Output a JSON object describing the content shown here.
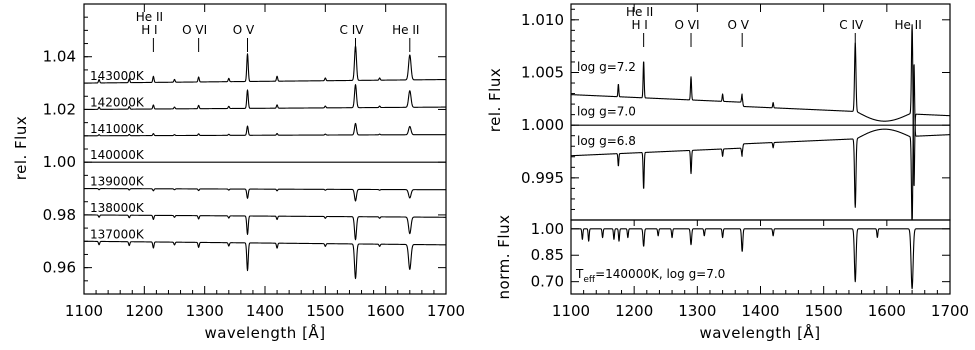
{
  "chart_data": [
    {
      "type": "line",
      "panel": "left",
      "xlabel": "wavelength [Å]",
      "ylabel": "rel. Flux",
      "xlim": [
        1100,
        1700
      ],
      "ylim": [
        0.95,
        1.06
      ],
      "x_ticks": [
        1100,
        1200,
        1300,
        1400,
        1500,
        1600,
        1700
      ],
      "y_ticks": [
        0.96,
        0.98,
        1.0,
        1.02,
        1.04
      ],
      "y_tick_labels": [
        "0.96",
        "0.98",
        "1.00",
        "1.02",
        "1.04"
      ],
      "line_markers": [
        {
          "label_top": "He II",
          "label_bottom": "H I",
          "x": 1215
        },
        {
          "label_top": "",
          "label_bottom": "O VI",
          "x": 1290
        },
        {
          "label_top": "",
          "label_bottom": "O V",
          "x": 1371
        },
        {
          "label_top": "",
          "label_bottom": "C IV",
          "x": 1550
        },
        {
          "label_top": "",
          "label_bottom": "He II",
          "x": 1640
        }
      ],
      "series": [
        {
          "name": "143000K",
          "offset": 1.03,
          "line_strength": 1.5
        },
        {
          "name": "142000K",
          "offset": 1.02,
          "line_strength": 1.0
        },
        {
          "name": "141000K",
          "offset": 1.01,
          "line_strength": 0.5
        },
        {
          "name": "140000K",
          "offset": 1.0,
          "line_strength": 0.0
        },
        {
          "name": "139000K",
          "offset": 0.99,
          "line_strength": -0.5
        },
        {
          "name": "138000K",
          "offset": 0.98,
          "line_strength": -1.0
        },
        {
          "name": "137000K",
          "offset": 0.97,
          "line_strength": -1.5
        }
      ]
    },
    {
      "type": "line",
      "panel": "right-top",
      "xlabel": "",
      "ylabel": "rel. Flux",
      "xlim": [
        1100,
        1700
      ],
      "ylim": [
        0.991,
        1.0115
      ],
      "y_ticks": [
        0.995,
        1.0,
        1.005,
        1.01
      ],
      "y_tick_labels": [
        "0.995",
        "1.000",
        "1.005",
        "1.010"
      ],
      "line_markers": [
        {
          "label_top": "He II",
          "label_bottom": "H I",
          "x": 1215
        },
        {
          "label_top": "",
          "label_bottom": "O VI",
          "x": 1290
        },
        {
          "label_top": "",
          "label_bottom": "O V",
          "x": 1371
        },
        {
          "label_top": "",
          "label_bottom": "C IV",
          "x": 1550
        },
        {
          "label_top": "",
          "label_bottom": "He II",
          "x": 1640
        }
      ],
      "series": [
        {
          "name": "log g=7.2",
          "start": 1.0029,
          "end": 1.0013,
          "line_strength": 1
        },
        {
          "name": "log g=7.0",
          "start": 1.0,
          "end": 1.0,
          "line_strength": 0
        },
        {
          "name": "log g=6.8",
          "start": 0.9971,
          "end": 0.9987,
          "line_strength": -1
        }
      ]
    },
    {
      "type": "line",
      "panel": "right-bottom",
      "xlabel": "wavelength [Å]",
      "ylabel": "norm. Flux",
      "xlim": [
        1100,
        1700
      ],
      "ylim": [
        0.63,
        1.05
      ],
      "x_ticks": [
        1100,
        1200,
        1300,
        1400,
        1500,
        1600,
        1700
      ],
      "y_ticks": [
        0.7,
        0.85,
        1.0
      ],
      "y_tick_labels": [
        "0.70",
        "0.85",
        "1.00"
      ],
      "annotation": {
        "prefix": "T",
        "subscript": "eff",
        "text": "=140000K, log g=7.0"
      },
      "series": [
        {
          "name": "T_eff=140000K, log g=7.0",
          "continuum": 1.0
        }
      ]
    }
  ],
  "colors": {
    "line": "#000000",
    "background": "#ffffff"
  }
}
